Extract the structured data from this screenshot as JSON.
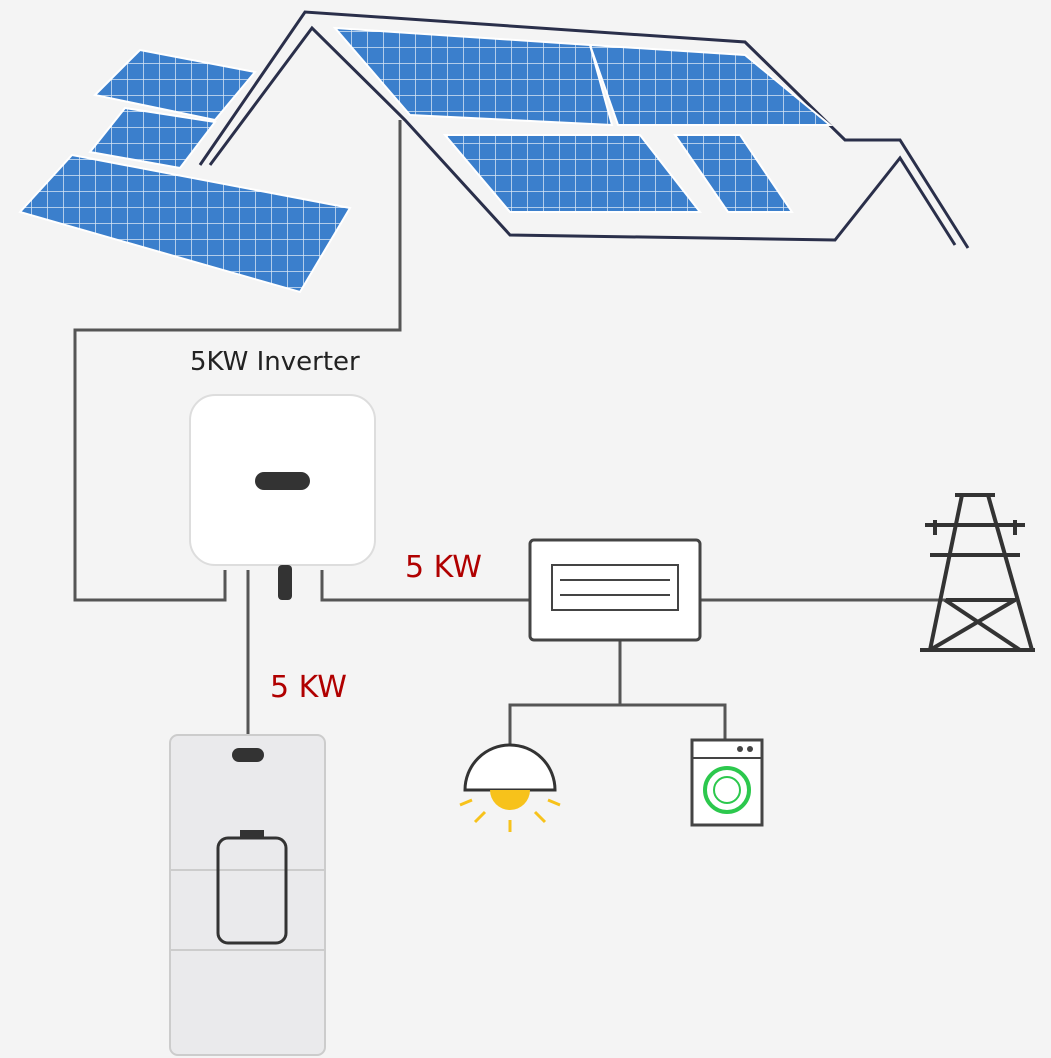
{
  "inverter": {
    "label": "5KW Inverter"
  },
  "flows": [
    {
      "label": "5 KW"
    },
    {
      "label": "5 KW"
    }
  ]
}
